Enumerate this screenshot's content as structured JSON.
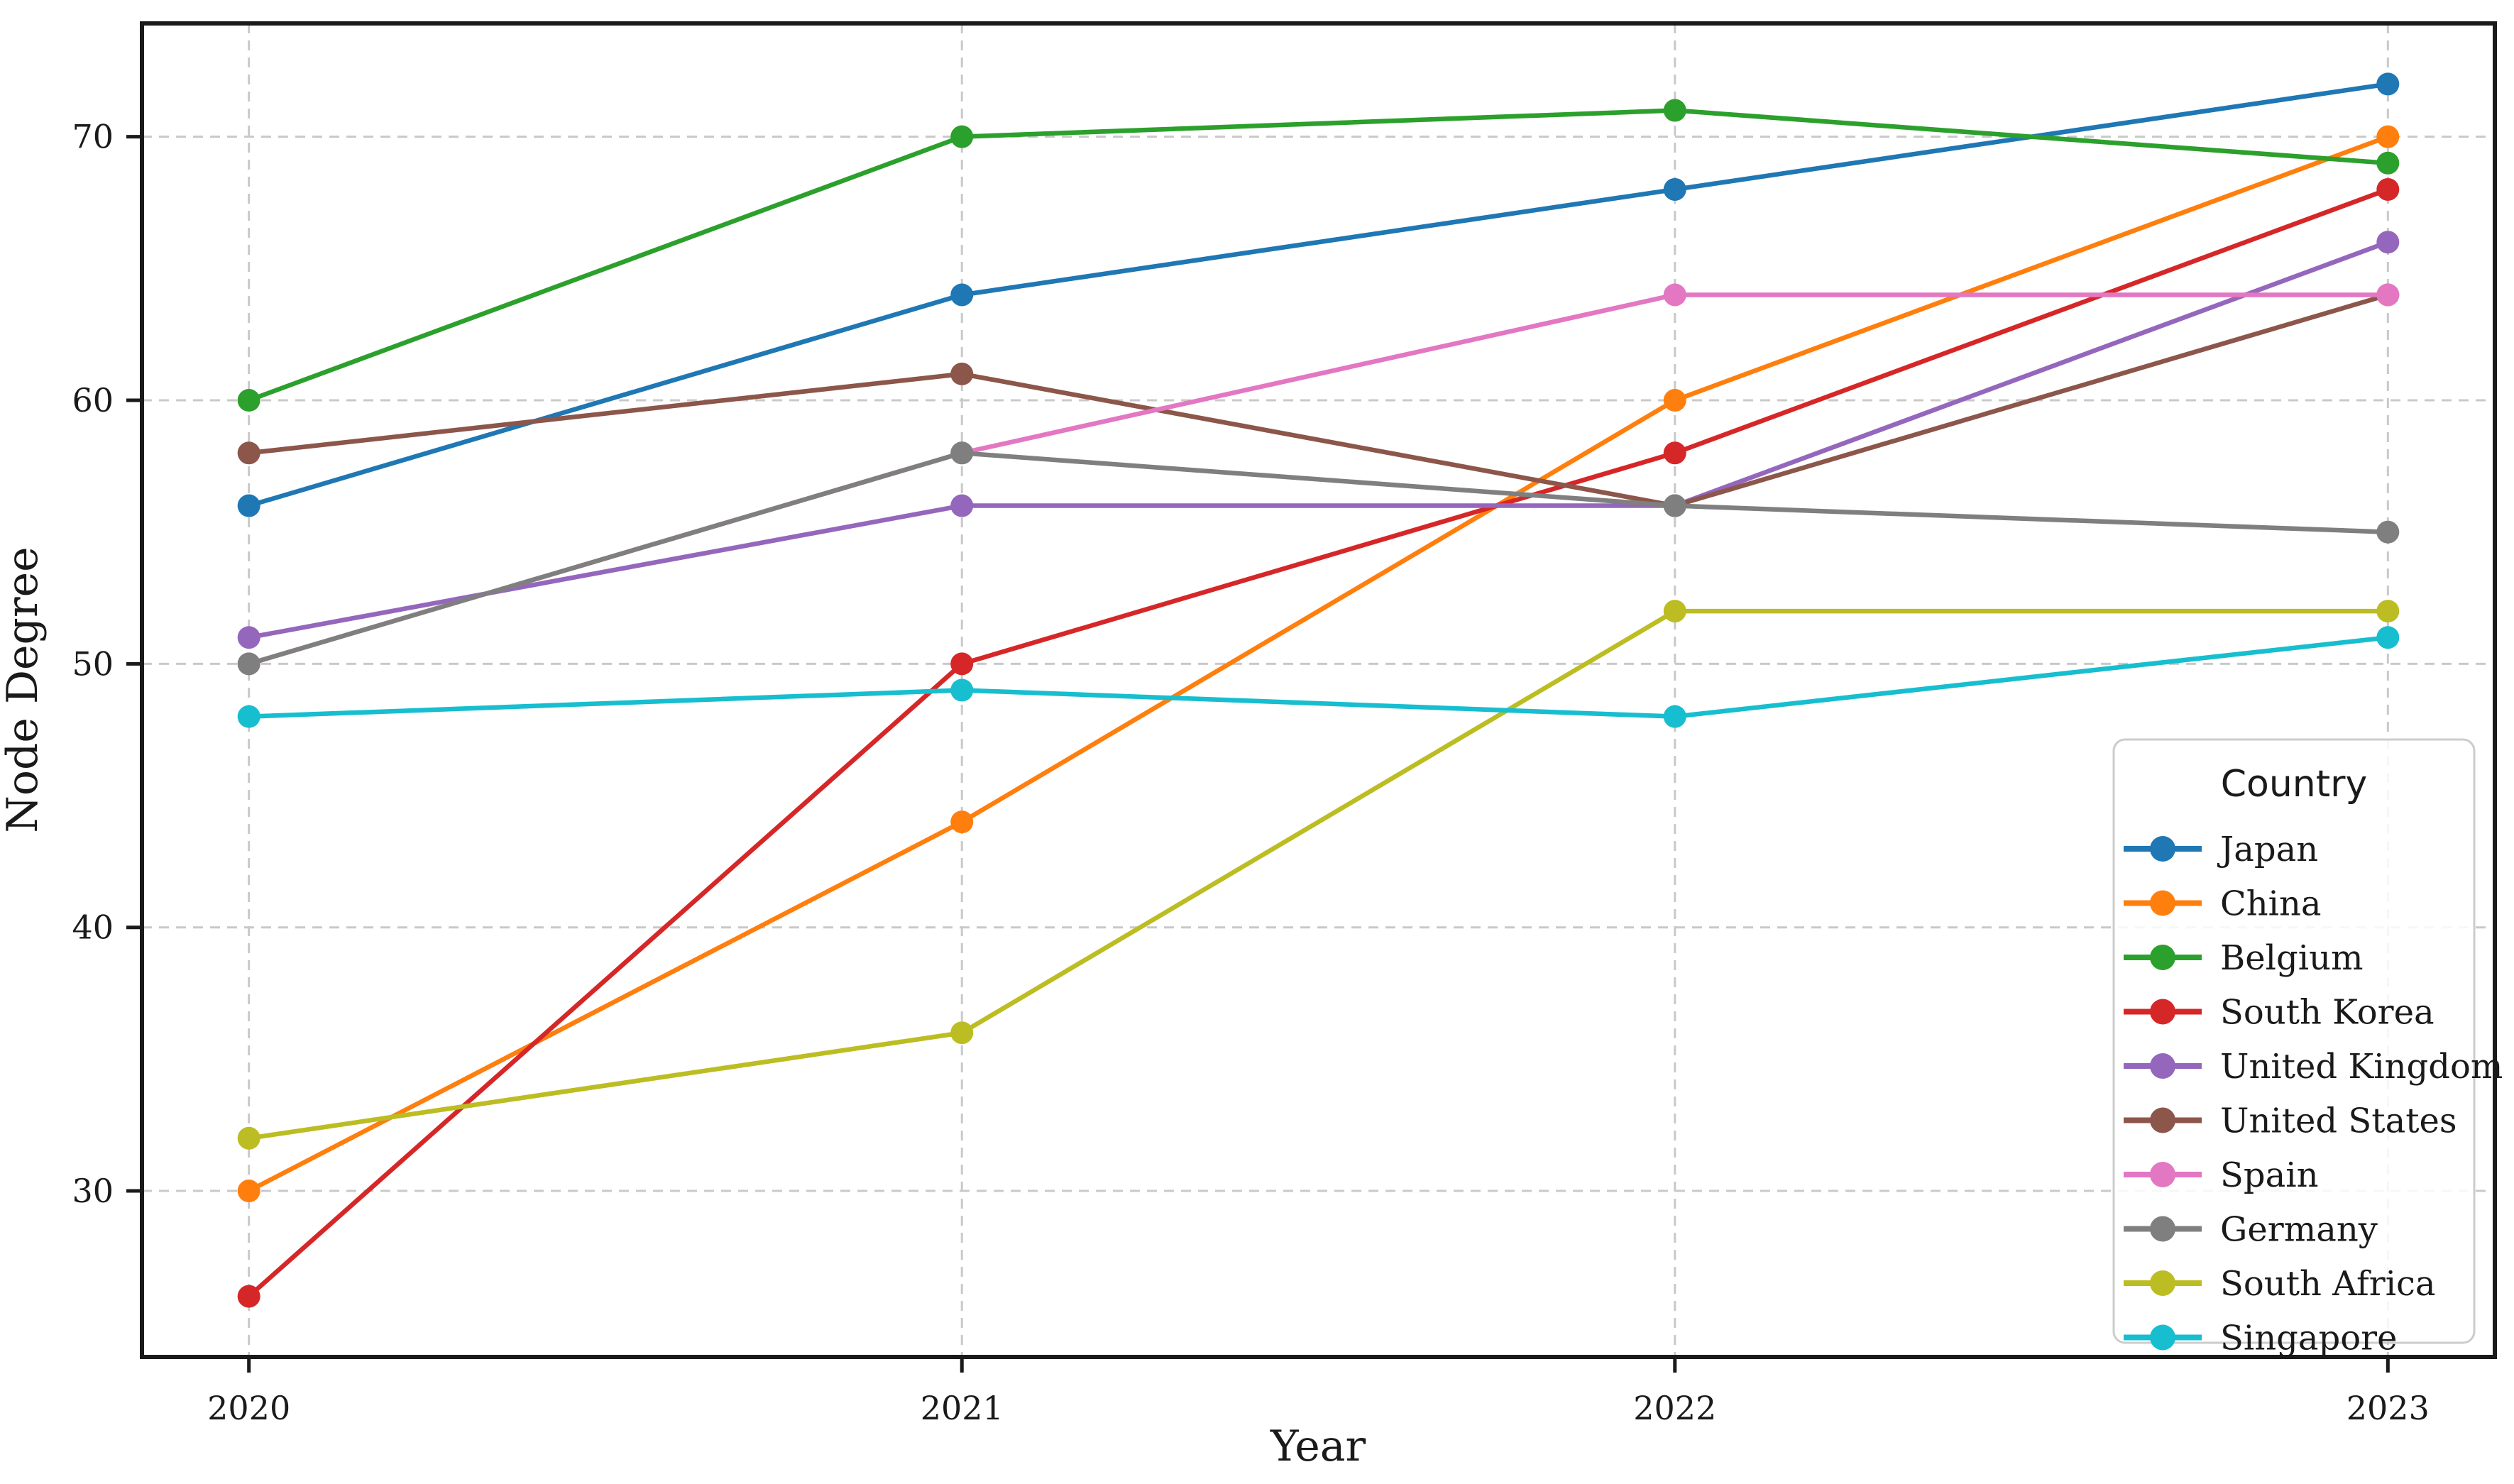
{
  "chart_data": {
    "type": "line",
    "title": "",
    "xlabel": "Year",
    "ylabel": "Node Degree",
    "x": [
      2020,
      2021,
      2022,
      2023
    ],
    "xtick_labels": [
      "2020",
      "2021",
      "2022",
      "2023"
    ],
    "yticks": [
      30,
      40,
      50,
      60,
      70
    ],
    "xlim": [
      2019.85,
      2023.15
    ],
    "ylim": [
      23.7,
      74.3
    ],
    "grid": true,
    "grid_style": "dashed",
    "legend": {
      "title": "Country",
      "position": "lower right"
    },
    "series": [
      {
        "name": "Japan",
        "color": "#1f77b4",
        "values": [
          56,
          64,
          68,
          72
        ]
      },
      {
        "name": "China",
        "color": "#ff7f0e",
        "values": [
          30,
          44,
          60,
          70
        ]
      },
      {
        "name": "Belgium",
        "color": "#2ca02c",
        "values": [
          60,
          70,
          71,
          69
        ]
      },
      {
        "name": "South Korea",
        "color": "#d62728",
        "values": [
          26,
          50,
          58,
          68
        ]
      },
      {
        "name": "United Kingdom",
        "color": "#9467bd",
        "values": [
          51,
          56,
          56,
          66
        ]
      },
      {
        "name": "United States",
        "color": "#8c564b",
        "values": [
          58,
          61,
          56,
          64
        ]
      },
      {
        "name": "Spain",
        "color": "#e377c2",
        "values": [
          50,
          58,
          64,
          64
        ]
      },
      {
        "name": "Germany",
        "color": "#7f7f7f",
        "values": [
          50,
          58,
          56,
          55
        ]
      },
      {
        "name": "South Africa",
        "color": "#bcbd22",
        "values": [
          32,
          36,
          52,
          52
        ]
      },
      {
        "name": "Singapore",
        "color": "#17becf",
        "values": [
          48,
          49,
          48,
          51
        ]
      }
    ]
  }
}
